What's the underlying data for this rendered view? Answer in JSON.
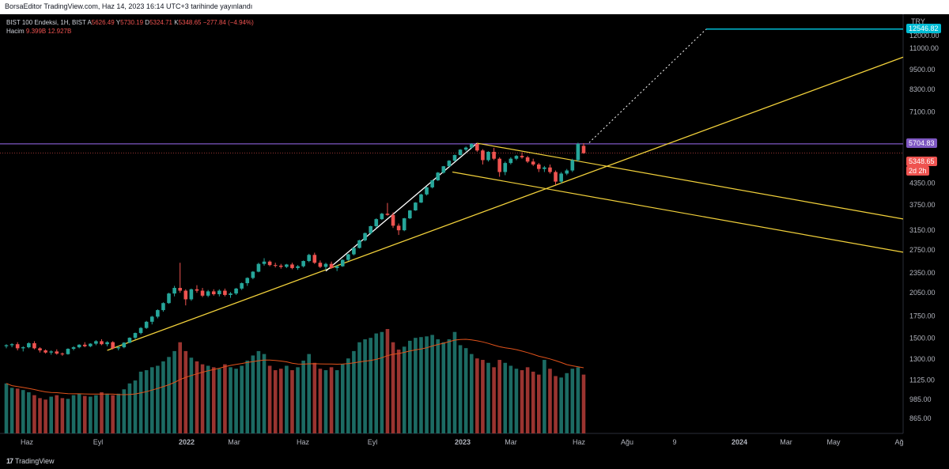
{
  "header": {
    "publish_line": "BorsaEditor TradingView.com, Haz 14, 2023 16:14 UTC+3 tarihinde yayınlandı"
  },
  "legend": {
    "symbol": "BIST 100 Endeksi, 1H, BIST",
    "open_label": "A",
    "open": "5626.49",
    "high_label": "Y",
    "high": "5730.19",
    "low_label": "D",
    "low": "5324.71",
    "close_label": "K",
    "close": "5348.65",
    "change": "−277.84 (−4.94%)",
    "volume_label": "Hacim",
    "volume": "9.399B",
    "volume_ma": "12.927B"
  },
  "currency": "TRY",
  "badges": {
    "target": "12546.82",
    "resistance": "5704.83",
    "last_price": "5348.65",
    "countdown": "2d 2h"
  },
  "colors": {
    "up": "#26a69a",
    "down": "#ef5350",
    "vol_up": "#1c6b63",
    "vol_down": "#9a3430",
    "trend": "#f2d13b",
    "resistance": "#7e57c2",
    "target": "#00bcd4",
    "ma": "#e0521b"
  },
  "footer": {
    "brand": "TradingView"
  },
  "chart_data": {
    "type": "candlestick",
    "title": "BIST 100 Endeksi, 1H, BIST",
    "scale": "log",
    "y_ticks": [
      865,
      985,
      1125,
      1300,
      1500,
      1750,
      2050,
      2350,
      2750,
      3150,
      3750,
      4350,
      7100,
      8300,
      9500,
      11000,
      12000
    ],
    "x_ticks": [
      "Haz",
      "Eyl",
      "2022",
      "Mar",
      "Haz",
      "Eyl",
      "2023",
      "Mar",
      "Haz",
      "Ağu",
      "9",
      "2024",
      "Mar",
      "May",
      "Ağ"
    ],
    "resistance_level": 5704.83,
    "target_level": 12546.82,
    "last_close": 5348.65,
    "candles": [
      [
        1420,
        1440,
        1400,
        1430
      ],
      [
        1430,
        1450,
        1410,
        1440
      ],
      [
        1440,
        1460,
        1380,
        1400
      ],
      [
        1400,
        1420,
        1370,
        1410
      ],
      [
        1410,
        1460,
        1400,
        1450
      ],
      [
        1450,
        1470,
        1390,
        1400
      ],
      [
        1400,
        1410,
        1360,
        1380
      ],
      [
        1380,
        1390,
        1350,
        1360
      ],
      [
        1360,
        1380,
        1340,
        1370
      ],
      [
        1370,
        1390,
        1340,
        1350
      ],
      [
        1350,
        1360,
        1330,
        1345
      ],
      [
        1345,
        1400,
        1340,
        1395
      ],
      [
        1395,
        1420,
        1380,
        1410
      ],
      [
        1410,
        1440,
        1400,
        1435
      ],
      [
        1435,
        1460,
        1410,
        1420
      ],
      [
        1420,
        1450,
        1410,
        1445
      ],
      [
        1445,
        1480,
        1430,
        1470
      ],
      [
        1470,
        1490,
        1430,
        1440
      ],
      [
        1440,
        1470,
        1420,
        1460
      ],
      [
        1460,
        1470,
        1390,
        1400
      ],
      [
        1400,
        1420,
        1380,
        1410
      ],
      [
        1410,
        1460,
        1400,
        1455
      ],
      [
        1455,
        1510,
        1450,
        1505
      ],
      [
        1505,
        1560,
        1490,
        1555
      ],
      [
        1555,
        1620,
        1540,
        1610
      ],
      [
        1610,
        1690,
        1600,
        1680
      ],
      [
        1680,
        1750,
        1650,
        1740
      ],
      [
        1740,
        1830,
        1720,
        1820
      ],
      [
        1820,
        1920,
        1800,
        1910
      ],
      [
        1910,
        2050,
        1900,
        2040
      ],
      [
        2040,
        2150,
        2000,
        2120
      ],
      [
        2120,
        2520,
        2050,
        2080
      ],
      [
        2080,
        2100,
        1880,
        1960
      ],
      [
        1960,
        2110,
        1940,
        2100
      ],
      [
        2100,
        2160,
        2050,
        2080
      ],
      [
        2080,
        2120,
        1990,
        2010
      ],
      [
        2010,
        2090,
        1990,
        2070
      ],
      [
        2070,
        2100,
        2010,
        2030
      ],
      [
        2030,
        2100,
        2000,
        2080
      ],
      [
        2080,
        2110,
        2000,
        2020
      ],
      [
        2020,
        2060,
        1980,
        2040
      ],
      [
        2040,
        2120,
        2020,
        2110
      ],
      [
        2110,
        2200,
        2090,
        2190
      ],
      [
        2190,
        2280,
        2150,
        2270
      ],
      [
        2270,
        2380,
        2250,
        2370
      ],
      [
        2370,
        2520,
        2360,
        2500
      ],
      [
        2500,
        2600,
        2470,
        2540
      ],
      [
        2540,
        2560,
        2460,
        2480
      ],
      [
        2480,
        2520,
        2440,
        2470
      ],
      [
        2470,
        2500,
        2420,
        2450
      ],
      [
        2450,
        2500,
        2430,
        2490
      ],
      [
        2490,
        2520,
        2410,
        2430
      ],
      [
        2430,
        2480,
        2400,
        2460
      ],
      [
        2460,
        2560,
        2440,
        2550
      ],
      [
        2550,
        2680,
        2530,
        2660
      ],
      [
        2660,
        2700,
        2500,
        2520
      ],
      [
        2520,
        2560,
        2430,
        2450
      ],
      [
        2450,
        2520,
        2400,
        2500
      ],
      [
        2500,
        2540,
        2420,
        2430
      ],
      [
        2430,
        2480,
        2380,
        2460
      ],
      [
        2460,
        2580,
        2450,
        2570
      ],
      [
        2570,
        2680,
        2550,
        2670
      ],
      [
        2670,
        2800,
        2650,
        2790
      ],
      [
        2790,
        2950,
        2780,
        2940
      ],
      [
        2940,
        3100,
        2920,
        3090
      ],
      [
        3090,
        3250,
        3060,
        3240
      ],
      [
        3240,
        3420,
        3200,
        3400
      ],
      [
        3400,
        3550,
        3380,
        3530
      ],
      [
        3530,
        3800,
        3480,
        3500
      ],
      [
        3500,
        3560,
        3200,
        3250
      ],
      [
        3250,
        3300,
        3050,
        3150
      ],
      [
        3150,
        3430,
        3130,
        3420
      ],
      [
        3420,
        3620,
        3400,
        3610
      ],
      [
        3610,
        3820,
        3600,
        3810
      ],
      [
        3810,
        4050,
        3800,
        4030
      ],
      [
        4030,
        4250,
        4000,
        4230
      ],
      [
        4230,
        4450,
        4200,
        4440
      ],
      [
        4440,
        4700,
        4420,
        4680
      ],
      [
        4680,
        4900,
        4650,
        4890
      ],
      [
        4890,
        5100,
        4870,
        5080
      ],
      [
        5080,
        5300,
        5050,
        5280
      ],
      [
        5280,
        5500,
        5260,
        5480
      ],
      [
        5480,
        5600,
        5420,
        5560
      ],
      [
        5560,
        5730,
        5520,
        5700
      ],
      [
        5700,
        5740,
        5400,
        5450
      ],
      [
        5450,
        5500,
        4950,
        5100
      ],
      [
        5100,
        5420,
        5050,
        5400
      ],
      [
        5400,
        5550,
        5100,
        5150
      ],
      [
        5150,
        5200,
        4550,
        4700
      ],
      [
        4700,
        5050,
        4600,
        5000
      ],
      [
        5000,
        5200,
        4950,
        5150
      ],
      [
        5150,
        5280,
        5100,
        5250
      ],
      [
        5250,
        5380,
        5150,
        5200
      ],
      [
        5200,
        5250,
        5000,
        5050
      ],
      [
        5050,
        5150,
        4900,
        4950
      ],
      [
        4950,
        5000,
        4700,
        4800
      ],
      [
        4800,
        4900,
        4700,
        4850
      ],
      [
        4850,
        4950,
        4650,
        4700
      ],
      [
        4700,
        4750,
        4300,
        4400
      ],
      [
        4400,
        4700,
        4350,
        4650
      ],
      [
        4650,
        4800,
        4600,
        4750
      ],
      [
        4750,
        5150,
        4700,
        5100
      ],
      [
        5100,
        5750,
        5050,
        5700
      ],
      [
        5626.49,
        5730.19,
        5324.71,
        5348.65
      ]
    ],
    "volume": [
      680,
      620,
      610,
      590,
      560,
      520,
      480,
      460,
      500,
      520,
      480,
      470,
      520,
      540,
      510,
      500,
      520,
      560,
      540,
      520,
      540,
      600,
      680,
      720,
      840,
      860,
      900,
      920,
      980,
      1040,
      1120,
      1240,
      1120,
      1030,
      980,
      940,
      920,
      900,
      880,
      940,
      900,
      880,
      920,
      990,
      1060,
      1120,
      1080,
      920,
      860,
      880,
      920,
      860,
      900,
      990,
      1080,
      960,
      880,
      860,
      900,
      860,
      940,
      1020,
      1120,
      1240,
      1280,
      1300,
      1360,
      1380,
      1420,
      1240,
      1140,
      1180,
      1260,
      1300,
      1310,
      1320,
      1340,
      1280,
      1240,
      1280,
      1380,
      1200,
      1160,
      1080,
      1020,
      1000,
      960,
      900,
      1000,
      960,
      920,
      880,
      860,
      900,
      840,
      800,
      1000,
      880,
      780,
      760,
      820,
      880,
      900,
      800
    ]
  }
}
